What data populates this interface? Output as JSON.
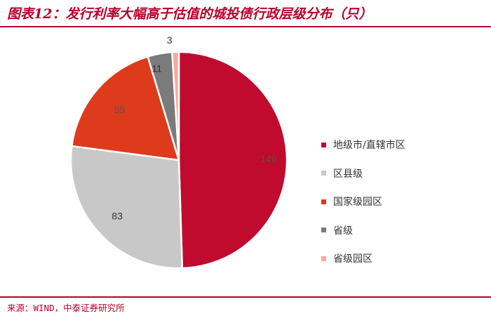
{
  "title": "图表12：发行利率大幅高于估值的城投债行政层级分布（只）",
  "source": "来源：WIND，中泰证券研究所",
  "chart_data": {
    "type": "pie",
    "title": "图表12：发行利率大幅高于估值的城投债行政层级分布（只）",
    "categories": [
      "地级市/直辖市区",
      "区县级",
      "国家级园区",
      "省级",
      "省级园区"
    ],
    "values": [
      149,
      83,
      55,
      11,
      3
    ],
    "data_labels": [
      "149",
      "83",
      "55",
      "11",
      "3"
    ],
    "colors": [
      "#c00a2e",
      "#c8c8c8",
      "#de3a1c",
      "#7b7b7b",
      "#f4aa9d"
    ],
    "legend_position": "right",
    "start_angle": "12 o'clock",
    "direction": "clockwise"
  }
}
